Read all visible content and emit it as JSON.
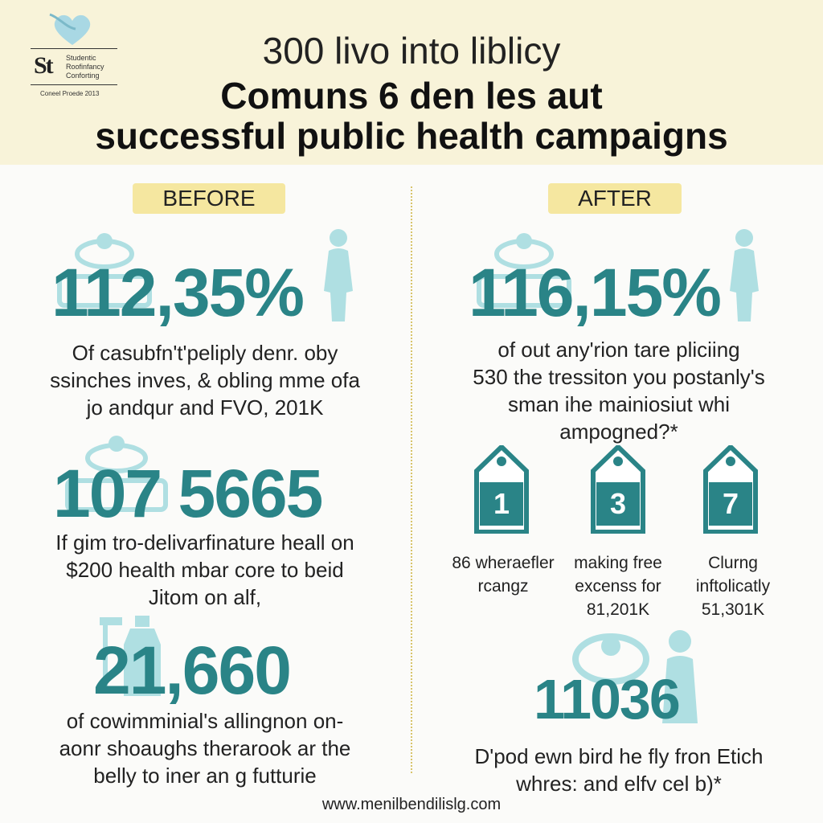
{
  "logo": {
    "mark": "St",
    "lines": [
      "Studentic",
      "Roofinfancy",
      "Conforting"
    ],
    "caption": "Coneel Proede 2013"
  },
  "header": {
    "line1": "300 livo into liblicy",
    "line2": "Comuns 6 den les aut",
    "line3": "successful public health campaigns"
  },
  "before": {
    "label": "BEFORE",
    "stat1": {
      "value": "112,35%",
      "lines": [
        "Of casubfn't'‌peliply denr. oby",
        "ssinches inves,  & obling mme ofa",
        "jo andqur and FVO, 201K"
      ]
    },
    "stat2": {
      "value": "107 5665",
      "lines": [
        "If gim tro-delivarfinature heall on",
        "$200 health mbar core to beid",
        "Jitom on alf,"
      ]
    },
    "stat3": {
      "value": "21,660",
      "lines": [
        "of cowimminial's allingnon on-",
        "aonr shoaughs therarook ar the",
        "belly to iner an g futturie"
      ]
    }
  },
  "after": {
    "label": "AFTER",
    "stat1": {
      "value": "116,15%",
      "lines": [
        "of out any'rion tare pliciing",
        "530 the tressiton you postanly's",
        "sman ihe mainiosiut whi",
        "ampogned?*"
      ]
    },
    "cards": [
      {
        "number": "1",
        "caption": [
          "86 wheraefler",
          "rcangz"
        ]
      },
      {
        "number": "3",
        "caption": [
          "making free",
          "excenss for",
          "81,201K"
        ]
      },
      {
        "number": "7",
        "caption": [
          "Clurng",
          "inftolicatly",
          "51,301K"
        ]
      }
    ],
    "stat2": {
      "value": "11036",
      "lines": [
        "D'pod ewn bird he fly fron Etich",
        "whres: and elfv cel b)*"
      ]
    }
  },
  "footer": {
    "url": "www.menilbendilislg.com"
  },
  "colors": {
    "accent": "#2a8487",
    "ghost": "#a7dde0",
    "pill": "#f5e7a0",
    "header_bg": "#f8f3d9"
  }
}
